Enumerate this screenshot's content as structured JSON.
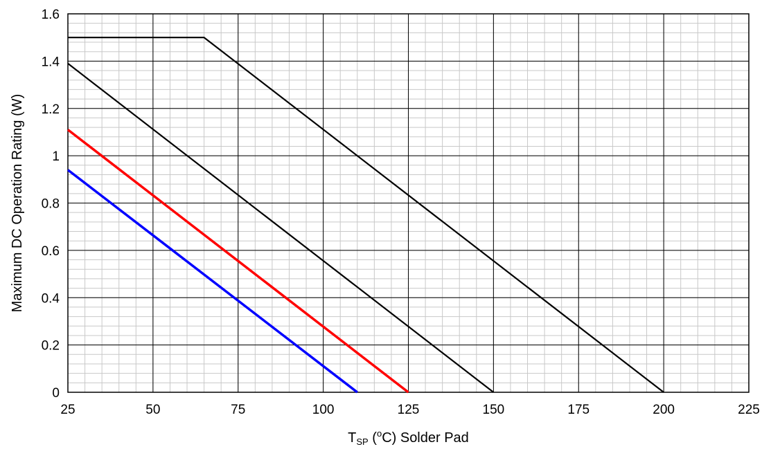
{
  "chart_data": {
    "type": "line",
    "title": "",
    "xlabel": {
      "base": "T",
      "subscript": "SP",
      "open": " (",
      "superscript": "o",
      "rest": "C) Solder Pad"
    },
    "ylabel": "Maximum DC Operation Rating (W)",
    "xlim": [
      25,
      225
    ],
    "ylim": [
      0,
      1.6
    ],
    "x_ticks": [
      25,
      50,
      75,
      100,
      125,
      150,
      175,
      200,
      225
    ],
    "y_ticks": [
      0,
      0.2,
      0.4,
      0.6,
      0.8,
      1,
      1.2,
      1.4,
      1.6
    ],
    "x_tick_labels": [
      "25",
      "50",
      "75",
      "100",
      "125",
      "150",
      "175",
      "200",
      "225"
    ],
    "y_tick_labels": [
      "0",
      "0.2",
      "0.4",
      "0.6",
      "0.8",
      "1",
      "1.2",
      "1.4",
      "1.6"
    ],
    "minor_x_step": 5,
    "minor_y_step": 0.04,
    "grid": true,
    "legend": "none",
    "series": [
      {
        "color": "#000000",
        "points": [
          [
            25,
            1.5
          ],
          [
            65,
            1.5
          ],
          [
            200,
            0
          ]
        ]
      },
      {
        "color": "#000000",
        "points": [
          [
            25,
            1.39
          ],
          [
            150,
            0
          ]
        ]
      },
      {
        "color": "#ff0000",
        "points": [
          [
            25,
            1.11
          ],
          [
            125,
            0
          ]
        ]
      },
      {
        "color": "#0000ff",
        "points": [
          [
            25,
            0.94
          ],
          [
            110,
            0
          ]
        ]
      }
    ]
  }
}
